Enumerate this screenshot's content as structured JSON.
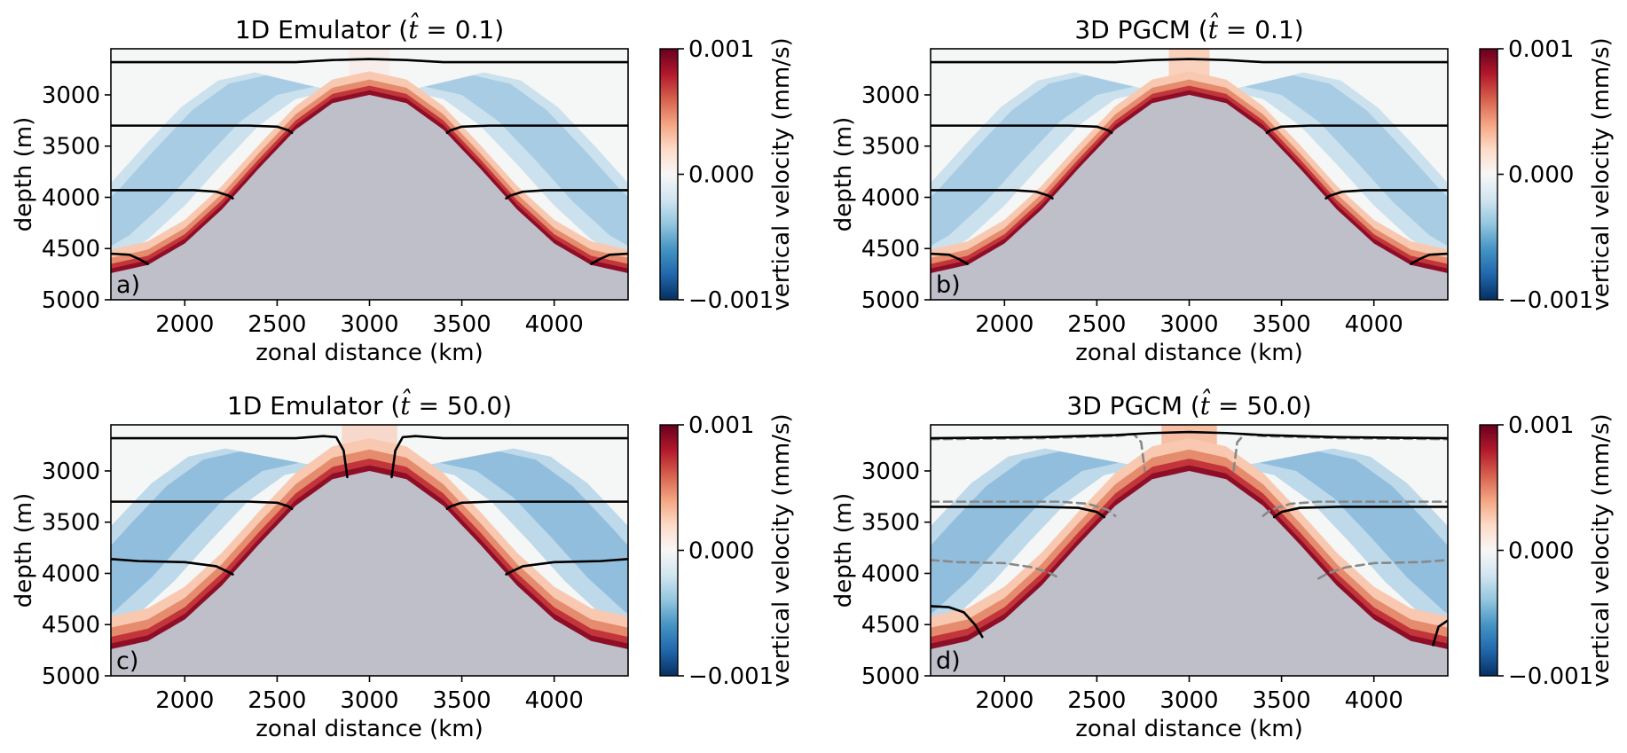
{
  "chart_data": [
    {
      "type": "heatmap",
      "panel_label": "a)",
      "title": "1D Emulator ($\\hat{t} = 0.1$)",
      "title_main": "1D Emulator (",
      "title_hat": "t̂",
      "title_rest": " = 0.1)",
      "xlabel": "zonal distance (km)",
      "ylabel": "depth (m)",
      "xlim": [
        1600,
        4400
      ],
      "ylim": [
        5000,
        2550
      ],
      "xticks": [
        2000,
        2500,
        3000,
        3500,
        4000
      ],
      "yticks": [
        3000,
        3500,
        4000,
        4500,
        5000
      ],
      "colorbar": {
        "label": "vertical velocity (mm/s)",
        "ticks": [
          "0.001",
          "0.000",
          "−0.001"
        ],
        "range": [
          -0.001,
          0.001
        ],
        "colormap": "RdBu_r"
      },
      "bathymetry": {
        "x": [
          1600,
          1800,
          2000,
          2200,
          2400,
          2600,
          2800,
          3000,
          3200,
          3400,
          3600,
          3800,
          4000,
          4200,
          4400
        ],
        "depth": [
          4740,
          4660,
          4450,
          4120,
          3720,
          3340,
          3080,
          3000,
          3080,
          3340,
          3720,
          4120,
          4450,
          4660,
          4740
        ]
      },
      "isopycnals_solid": [
        {
          "x": [
            1600,
            2600,
            2800,
            3000,
            3200,
            3400,
            4400
          ],
          "depth": [
            2680,
            2680,
            2660,
            2650,
            2660,
            2680,
            2680
          ]
        },
        {
          "x": [
            1600,
            2350,
            2500,
            2560,
            2580
          ],
          "depth": [
            3300,
            3300,
            3310,
            3345,
            3370
          ]
        },
        {
          "x": [
            3420,
            3440,
            3500,
            3650,
            4400
          ],
          "depth": [
            3370,
            3345,
            3310,
            3300,
            3300
          ]
        },
        {
          "x": [
            1600,
            2050,
            2170,
            2240,
            2260
          ],
          "depth": [
            3930,
            3930,
            3945,
            3985,
            4010
          ]
        },
        {
          "x": [
            3740,
            3760,
            3830,
            3950,
            4400
          ],
          "depth": [
            4010,
            3985,
            3945,
            3930,
            3930
          ]
        },
        {
          "x": [
            1600,
            1700,
            1750,
            1800
          ],
          "depth": [
            4550,
            4560,
            4600,
            4650
          ]
        },
        {
          "x": [
            4200,
            4250,
            4300,
            4400
          ],
          "depth": [
            4650,
            4600,
            4560,
            4550
          ]
        }
      ],
      "isopycnals_dashed": []
    },
    {
      "type": "heatmap",
      "panel_label": "b)",
      "title": "3D PGCM ($\\hat{t} = 0.1$)",
      "title_main": "3D PGCM (",
      "title_hat": "t̂",
      "title_rest": " = 0.1)",
      "xlabel": "zonal distance (km)",
      "ylabel": "depth (m)",
      "xlim": [
        1600,
        4400
      ],
      "ylim": [
        5000,
        2550
      ],
      "xticks": [
        2000,
        2500,
        3000,
        3500,
        4000
      ],
      "yticks": [
        3000,
        3500,
        4000,
        4500,
        5000
      ],
      "colorbar": {
        "label": "vertical velocity (mm/s)",
        "ticks": [
          "0.001",
          "0.000",
          "−0.001"
        ],
        "range": [
          -0.001,
          0.001
        ],
        "colormap": "RdBu_r"
      },
      "bathymetry": {
        "x": [
          1600,
          1800,
          2000,
          2200,
          2400,
          2600,
          2800,
          3000,
          3200,
          3400,
          3600,
          3800,
          4000,
          4200,
          4400
        ],
        "depth": [
          4740,
          4660,
          4450,
          4120,
          3720,
          3340,
          3080,
          3000,
          3080,
          3340,
          3720,
          4120,
          4450,
          4660,
          4740
        ]
      },
      "isopycnals_solid": [
        {
          "x": [
            1600,
            2600,
            2800,
            3000,
            3200,
            3400,
            4400
          ],
          "depth": [
            2680,
            2680,
            2660,
            2650,
            2660,
            2680,
            2680
          ]
        },
        {
          "x": [
            1600,
            2350,
            2500,
            2560,
            2580
          ],
          "depth": [
            3300,
            3300,
            3310,
            3345,
            3370
          ]
        },
        {
          "x": [
            3420,
            3440,
            3500,
            3650,
            4400
          ],
          "depth": [
            3370,
            3345,
            3310,
            3300,
            3300
          ]
        },
        {
          "x": [
            1600,
            2050,
            2170,
            2240,
            2260
          ],
          "depth": [
            3930,
            3930,
            3945,
            3985,
            4010
          ]
        },
        {
          "x": [
            3740,
            3760,
            3830,
            3950,
            4400
          ],
          "depth": [
            4010,
            3985,
            3945,
            3930,
            3930
          ]
        },
        {
          "x": [
            1600,
            1700,
            1750,
            1800
          ],
          "depth": [
            4550,
            4560,
            4600,
            4650
          ]
        },
        {
          "x": [
            4200,
            4250,
            4300,
            4400
          ],
          "depth": [
            4650,
            4600,
            4560,
            4550
          ]
        }
      ],
      "isopycnals_dashed": []
    },
    {
      "type": "heatmap",
      "panel_label": "c)",
      "title": "1D Emulator ($\\hat{t} = 50.0$)",
      "title_main": "1D Emulator (",
      "title_hat": "t̂",
      "title_rest": " = 50.0)",
      "xlabel": "zonal distance (km)",
      "ylabel": "depth (m)",
      "xlim": [
        1600,
        4400
      ],
      "ylim": [
        5000,
        2550
      ],
      "xticks": [
        2000,
        2500,
        3000,
        3500,
        4000
      ],
      "yticks": [
        3000,
        3500,
        4000,
        4500,
        5000
      ],
      "colorbar": {
        "label": "vertical velocity (mm/s)",
        "ticks": [
          "0.001",
          "0.000",
          "−0.001"
        ],
        "range": [
          -0.001,
          0.001
        ],
        "colormap": "RdBu_r"
      },
      "bathymetry": {
        "x": [
          1600,
          1800,
          2000,
          2200,
          2400,
          2600,
          2800,
          3000,
          3200,
          3400,
          3600,
          3800,
          4000,
          4200,
          4400
        ],
        "depth": [
          4740,
          4660,
          4450,
          4120,
          3720,
          3340,
          3080,
          3000,
          3080,
          3340,
          3720,
          4120,
          4450,
          4660,
          4740
        ]
      },
      "isopycnals_solid": [
        {
          "x": [
            1600,
            2600,
            2750,
            2820,
            2860,
            2880
          ],
          "depth": [
            2680,
            2680,
            2660,
            2670,
            2800,
            3060
          ]
        },
        {
          "x": [
            3120,
            3140,
            3180,
            3250,
            3400,
            4400
          ],
          "depth": [
            3060,
            2800,
            2670,
            2660,
            2680,
            2680
          ]
        },
        {
          "x": [
            1600,
            2350,
            2500,
            2560,
            2580
          ],
          "depth": [
            3300,
            3300,
            3310,
            3345,
            3370
          ]
        },
        {
          "x": [
            3420,
            3440,
            3500,
            3650,
            4400
          ],
          "depth": [
            3370,
            3345,
            3310,
            3300,
            3300
          ]
        },
        {
          "x": [
            1600,
            1750,
            2000,
            2170,
            2240,
            2260
          ],
          "depth": [
            3860,
            3880,
            3890,
            3930,
            3990,
            4010
          ]
        },
        {
          "x": [
            3740,
            3760,
            3830,
            4000,
            4250,
            4400
          ],
          "depth": [
            4010,
            3990,
            3930,
            3890,
            3880,
            3860
          ]
        }
      ],
      "isopycnals_dashed": []
    },
    {
      "type": "heatmap",
      "panel_label": "d)",
      "title": "3D PGCM ($\\hat{t} = 50.0$)",
      "title_main": "3D PGCM (",
      "title_hat": "t̂",
      "title_rest": " = 50.0)",
      "xlabel": "zonal distance (km)",
      "ylabel": "depth (m)",
      "xlim": [
        1600,
        4400
      ],
      "ylim": [
        5000,
        2550
      ],
      "xticks": [
        2000,
        2500,
        3000,
        3500,
        4000
      ],
      "yticks": [
        3000,
        3500,
        4000,
        4500,
        5000
      ],
      "colorbar": {
        "label": "vertical velocity (mm/s)",
        "ticks": [
          "0.001",
          "0.000",
          "−0.001"
        ],
        "range": [
          -0.001,
          0.001
        ],
        "colormap": "RdBu_r"
      },
      "bathymetry": {
        "x": [
          1600,
          1800,
          2000,
          2200,
          2400,
          2600,
          2800,
          3000,
          3200,
          3400,
          3600,
          3800,
          4000,
          4200,
          4400
        ],
        "depth": [
          4740,
          4660,
          4450,
          4120,
          3720,
          3340,
          3080,
          3000,
          3080,
          3340,
          3720,
          4120,
          4450,
          4660,
          4740
        ]
      },
      "isopycnals_solid": [
        {
          "x": [
            1600,
            2200,
            2600,
            2800,
            3000,
            3200,
            3400,
            3800,
            4400
          ],
          "depth": [
            2680,
            2670,
            2650,
            2630,
            2620,
            2630,
            2650,
            2670,
            2680
          ]
        },
        {
          "x": [
            1600,
            2200,
            2400,
            2500,
            2540
          ],
          "depth": [
            3350,
            3350,
            3360,
            3400,
            3450
          ]
        },
        {
          "x": [
            3460,
            3500,
            3600,
            3800,
            4400
          ],
          "depth": [
            3450,
            3400,
            3360,
            3350,
            3350
          ]
        },
        {
          "x": [
            1600,
            1700,
            1780,
            1840,
            1880
          ],
          "depth": [
            4320,
            4330,
            4380,
            4500,
            4620
          ]
        },
        {
          "x": [
            4320,
            4350,
            4400
          ],
          "depth": [
            4700,
            4520,
            4460
          ]
        }
      ],
      "isopycnals_dashed": [
        {
          "x": [
            1600,
            2200,
            2600,
            2700,
            2740,
            2760
          ],
          "depth": [
            2690,
            2680,
            2660,
            2640,
            2720,
            3000
          ]
        },
        {
          "x": [
            3240,
            3260,
            3300,
            3400,
            3800,
            4400
          ],
          "depth": [
            3000,
            2720,
            2640,
            2660,
            2680,
            2690
          ]
        },
        {
          "x": [
            1600,
            2300,
            2450,
            2560,
            2600
          ],
          "depth": [
            3300,
            3300,
            3320,
            3380,
            3440
          ]
        },
        {
          "x": [
            3400,
            3440,
            3550,
            3700,
            4400
          ],
          "depth": [
            3440,
            3380,
            3320,
            3300,
            3300
          ]
        },
        {
          "x": [
            1600,
            1750,
            2000,
            2150,
            2250,
            2300
          ],
          "depth": [
            3870,
            3890,
            3900,
            3940,
            4000,
            4050
          ]
        },
        {
          "x": [
            3700,
            3750,
            3850,
            4000,
            4250,
            4400
          ],
          "depth": [
            4050,
            4000,
            3940,
            3900,
            3890,
            3870
          ]
        }
      ]
    }
  ]
}
